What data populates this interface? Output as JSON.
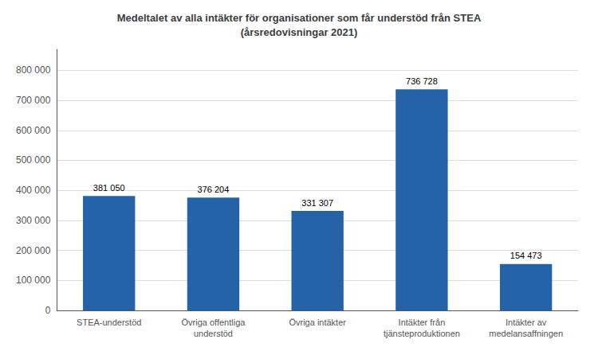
{
  "chart_data": {
    "type": "bar",
    "title": "Medeltalet av alla intäkter för organisationer som får understöd från STEA\n(årsredovisningar 2021)",
    "categories": [
      "STEA-understöd",
      "Övriga offentliga\nunderstöd",
      "Övriga intäkter",
      "Intäkter från\ntjänsteproduktionen",
      "Intäkter av\nmedelansaffningen"
    ],
    "values": [
      381050,
      376204,
      331307,
      736728,
      154473
    ],
    "value_labels": [
      "381 050",
      "376 204",
      "331 307",
      "736 728",
      "154 473"
    ],
    "data_labels": true,
    "color": "#2563a8",
    "ylim": [
      0,
      870000
    ],
    "yticks": [
      0,
      {
        "value": 100000,
        "label": "100 000"
      },
      {
        "value": 200000,
        "label": "200 000"
      },
      {
        "value": 300000,
        "label": "300 000"
      },
      {
        "value": 400000,
        "label": "400 000"
      },
      {
        "value": 500000,
        "label": "500 000"
      },
      {
        "value": 600000,
        "label": "600 000"
      },
      {
        "value": 700000,
        "label": "700 000"
      },
      {
        "value": 800000,
        "label": "800 000"
      }
    ],
    "grid": true
  }
}
